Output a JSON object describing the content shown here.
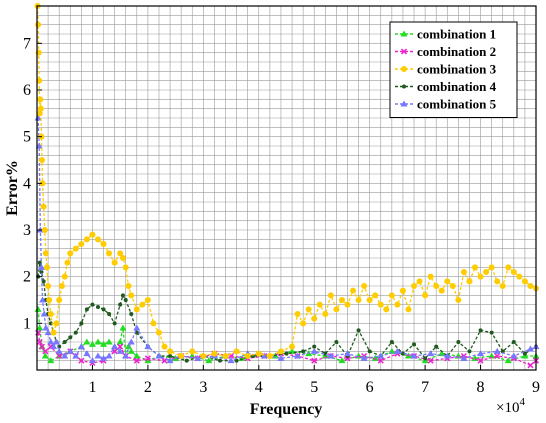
{
  "chart_data": {
    "type": "line",
    "xlabel": "Frequency",
    "ylabel": "Error%",
    "x_multiplier": "×10",
    "x_multiplier_exp": "4",
    "xlim": [
      0,
      90000
    ],
    "ylim": [
      0,
      7.8
    ],
    "grid": true,
    "legend_position": "top-right",
    "x_ticks": [
      10000,
      20000,
      30000,
      40000,
      50000,
      60000,
      70000,
      80000,
      90000
    ],
    "x_tick_labels": [
      "1",
      "2",
      "3",
      "4",
      "5",
      "6",
      "7",
      "8",
      "9"
    ],
    "y_ticks": [
      1,
      2,
      3,
      4,
      5,
      6,
      7
    ],
    "y_tick_labels": [
      "1",
      "2",
      "3",
      "4",
      "5",
      "6",
      "7"
    ],
    "series": [
      {
        "name": "combination 1",
        "color": "#22dd22",
        "marker": "triangle",
        "x": [
          200,
          500,
          900,
          1500,
          2500,
          4000,
          6000,
          8000,
          9000,
          10000,
          11000,
          12000,
          13000,
          14000,
          15000,
          15500,
          16000,
          16500,
          17000,
          18000,
          20000,
          22000,
          25000,
          28000,
          31000,
          34000,
          37000,
          40000,
          43000,
          46000,
          49000,
          52000,
          55000,
          58000,
          61000,
          64000,
          67000,
          70000,
          73000,
          76000,
          79000,
          82000,
          85000,
          88000,
          90000
        ],
        "y": [
          1.3,
          0.9,
          0.5,
          0.3,
          0.2,
          0.3,
          0.4,
          0.5,
          0.6,
          0.55,
          0.6,
          0.55,
          0.6,
          0.5,
          0.6,
          0.9,
          0.3,
          0.5,
          0.4,
          0.3,
          0.2,
          0.3,
          0.25,
          0.3,
          0.2,
          0.3,
          0.25,
          0.35,
          0.3,
          0.4,
          0.35,
          0.3,
          0.2,
          0.3,
          0.25,
          0.4,
          0.3,
          0.2,
          0.35,
          0.3,
          0.25,
          0.3,
          0.2,
          0.3,
          0.3
        ]
      },
      {
        "name": "combination 2",
        "color": "#ee22cc",
        "marker": "x",
        "x": [
          200,
          500,
          900,
          1500,
          2500,
          4000,
          6000,
          7000,
          8000,
          10000,
          12000,
          14000,
          15000,
          16000,
          18000,
          20000,
          23000,
          26000,
          29000,
          32000,
          35000,
          38000,
          41000,
          44000,
          47000,
          50000,
          53000,
          56000,
          59000,
          62000,
          65000,
          68000,
          71000,
          74000,
          77000,
          80000,
          83000,
          86000,
          89000,
          90000
        ],
        "y": [
          0.8,
          0.6,
          0.5,
          0.4,
          0.5,
          0.3,
          0.4,
          0.3,
          0.2,
          0.15,
          0.2,
          0.4,
          0.5,
          0.3,
          0.2,
          0.25,
          0.2,
          0.3,
          0.25,
          0.35,
          0.3,
          0.25,
          0.3,
          0.35,
          0.3,
          0.2,
          0.3,
          0.25,
          0.3,
          0.2,
          0.35,
          0.3,
          0.2,
          0.25,
          0.3,
          0.2,
          0.3,
          0.25,
          0.1,
          0.2
        ]
      },
      {
        "name": "combination 3",
        "color": "#ffcc00",
        "marker": "circle",
        "x": [
          100,
          200,
          300,
          400,
          500,
          600,
          700,
          800,
          900,
          1000,
          1200,
          1400,
          1600,
          1800,
          2000,
          2200,
          2500,
          3000,
          3500,
          4000,
          4500,
          5000,
          5500,
          6000,
          7000,
          8000,
          9000,
          10000,
          11000,
          12000,
          13000,
          14000,
          15000,
          15500,
          16000,
          16500,
          17000,
          18000,
          19000,
          20000,
          21000,
          22000,
          23000,
          24000,
          26000,
          28000,
          30000,
          32000,
          34000,
          36000,
          38000,
          40000,
          42000,
          44000,
          46000,
          47000,
          48000,
          49000,
          50000,
          51000,
          52000,
          53000,
          54000,
          55000,
          56000,
          57000,
          58000,
          59000,
          60000,
          61000,
          62000,
          63000,
          64000,
          65000,
          66000,
          67000,
          68000,
          69000,
          70000,
          71000,
          72000,
          73000,
          74000,
          75000,
          76000,
          77000,
          78000,
          79000,
          80000,
          81000,
          82000,
          83000,
          84000,
          85000,
          86000,
          87000,
          88000,
          89000,
          90000
        ],
        "y": [
          7.8,
          7.4,
          6.8,
          6.2,
          5.5,
          5.8,
          5.6,
          5.0,
          4.5,
          4.0,
          3.5,
          3.0,
          2.5,
          2.2,
          1.8,
          1.5,
          1.2,
          0.8,
          1.0,
          1.5,
          1.8,
          2.0,
          2.3,
          2.5,
          2.6,
          2.7,
          2.8,
          2.9,
          2.8,
          2.7,
          2.5,
          2.3,
          2.5,
          2.4,
          2.2,
          1.8,
          1.6,
          1.3,
          1.4,
          1.5,
          1.0,
          0.8,
          0.5,
          0.4,
          0.3,
          0.4,
          0.3,
          0.35,
          0.3,
          0.4,
          0.3,
          0.35,
          0.3,
          0.4,
          0.5,
          1.2,
          1.0,
          1.3,
          1.1,
          1.4,
          1.2,
          1.6,
          1.3,
          1.5,
          1.4,
          1.7,
          1.5,
          1.8,
          1.5,
          1.6,
          1.4,
          1.3,
          1.6,
          1.4,
          1.7,
          1.3,
          1.8,
          1.9,
          1.6,
          2.0,
          1.8,
          1.7,
          1.9,
          1.8,
          1.5,
          2.1,
          1.9,
          2.2,
          2.0,
          2.1,
          2.2,
          1.9,
          1.8,
          2.2,
          2.1,
          2.0,
          1.9,
          1.8,
          1.75
        ]
      },
      {
        "name": "combination 4",
        "color": "#1e5a1e",
        "marker": "dot",
        "x": [
          200,
          500,
          800,
          1200,
          1600,
          2000,
          2500,
          3000,
          3500,
          4000,
          5000,
          6000,
          7000,
          8000,
          9000,
          10000,
          11000,
          12000,
          13000,
          14000,
          15000,
          15500,
          16000,
          17000,
          18000,
          20000,
          22000,
          24000,
          27000,
          30000,
          33000,
          36000,
          39000,
          42000,
          45000,
          48000,
          50000,
          52000,
          54000,
          56000,
          58000,
          60000,
          62000,
          64000,
          66000,
          68000,
          70000,
          72000,
          74000,
          76000,
          78000,
          80000,
          82000,
          84000,
          86000,
          88000,
          90000
        ],
        "y": [
          2.0,
          2.3,
          2.1,
          1.9,
          1.5,
          1.2,
          1.0,
          0.8,
          0.6,
          0.5,
          0.6,
          0.7,
          0.8,
          1.0,
          1.3,
          1.4,
          1.35,
          1.3,
          1.2,
          1.0,
          1.4,
          1.6,
          1.5,
          1.2,
          0.8,
          0.5,
          0.3,
          0.3,
          0.2,
          0.3,
          0.2,
          0.2,
          0.3,
          0.3,
          0.35,
          0.4,
          0.5,
          0.35,
          0.6,
          0.3,
          0.85,
          0.4,
          0.3,
          0.6,
          0.35,
          0.55,
          0.25,
          0.5,
          0.3,
          0.6,
          0.4,
          0.85,
          0.8,
          0.4,
          0.6,
          0.35,
          0.5
        ]
      },
      {
        "name": "combination 5",
        "color": "#7777ff",
        "marker": "triangle",
        "x": [
          200,
          400,
          600,
          800,
          1000,
          1300,
          1600,
          2000,
          2500,
          3000,
          3500,
          4000,
          5000,
          6000,
          7000,
          8000,
          9000,
          10000,
          11000,
          12000,
          13000,
          14000,
          15000,
          16000,
          17000,
          18000,
          20000,
          22000,
          24000,
          26000,
          29000,
          32000,
          35000,
          38000,
          41000,
          44000,
          47000,
          50000,
          53000,
          56000,
          59000,
          62000,
          65000,
          68000,
          71000,
          74000,
          77000,
          80000,
          83000,
          86000,
          89000,
          90000
        ],
        "y": [
          5.4,
          4.8,
          3.0,
          2.2,
          1.5,
          1.2,
          0.9,
          0.8,
          0.6,
          0.5,
          0.6,
          0.4,
          0.3,
          0.4,
          0.3,
          0.5,
          0.35,
          0.2,
          0.3,
          0.25,
          0.3,
          0.5,
          0.4,
          0.3,
          0.6,
          0.9,
          0.5,
          0.3,
          0.2,
          0.3,
          0.25,
          0.3,
          0.2,
          0.35,
          0.3,
          0.25,
          0.3,
          0.4,
          0.3,
          0.35,
          0.25,
          0.3,
          0.4,
          0.3,
          0.35,
          0.3,
          0.25,
          0.35,
          0.4,
          0.3,
          0.45,
          0.5
        ]
      }
    ]
  }
}
